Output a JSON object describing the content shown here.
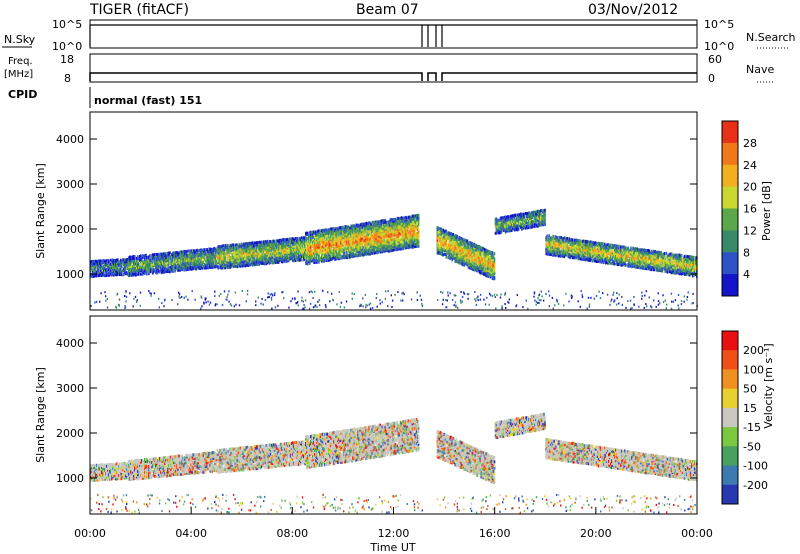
{
  "header": {
    "title": "TIGER (fitACF)",
    "beam": "Beam 07",
    "date": "03/Nov/2012"
  },
  "params": {
    "nsky_label": "N.Sky",
    "nsearch_label": "N.Search",
    "nsky_ticks": [
      "10^5",
      "10^0"
    ],
    "nsearch_ticks": [
      "10^5",
      "10^0"
    ],
    "freq_label": [
      "Freq.",
      "[MHz]"
    ],
    "freq_ticks": [
      "18",
      "8"
    ],
    "nave_label": "Nave",
    "nave_ticks": [
      "60",
      "0"
    ],
    "cpid_label": "CPID",
    "cpid_value": "normal (fast) 151"
  },
  "chart_data": [
    {
      "type": "heatmap",
      "name": "power",
      "ylabel": "Slant Range [km]",
      "yticks": [
        1000,
        2000,
        3000,
        4000
      ],
      "ylim": [
        200,
        4600
      ],
      "xlim": [
        0,
        24
      ],
      "colorbar_label": "Power [dB]",
      "colorbar_ticks": [
        "28",
        "24",
        "20",
        "16",
        "12",
        "8",
        "4"
      ],
      "colorscale": [
        "#1414c8",
        "#2e52c8",
        "#3a8a6a",
        "#5aa84a",
        "#c8d830",
        "#f0b020",
        "#f07818",
        "#e83018"
      ],
      "range_bands": [
        {
          "t": [
            0.0,
            1.5
          ],
          "center": [
            1150,
            1200
          ],
          "width": 350,
          "level": 0.35
        },
        {
          "t": [
            1.5,
            5.0
          ],
          "center": [
            1200,
            1400
          ],
          "width": 420,
          "level": 0.45
        },
        {
          "t": [
            5.0,
            8.5
          ],
          "center": [
            1400,
            1600
          ],
          "width": 500,
          "level": 0.6
        },
        {
          "t": [
            8.5,
            13.0
          ],
          "center": [
            1600,
            2000
          ],
          "width": 700,
          "level": 0.8
        },
        {
          "t": [
            13.7,
            16.0
          ],
          "center": [
            1800,
            1200
          ],
          "width": 600,
          "level": 0.75
        },
        {
          "t": [
            16.0,
            18.0
          ],
          "center": [
            2100,
            2300
          ],
          "width": 350,
          "level": 0.5
        },
        {
          "t": [
            18.0,
            24.0
          ],
          "center": [
            1700,
            1200
          ],
          "width": 450,
          "level": 0.65
        }
      ]
    },
    {
      "type": "heatmap",
      "name": "velocity",
      "ylabel": "Slant Range [km]",
      "yticks": [
        1000,
        2000,
        3000,
        4000
      ],
      "ylim": [
        200,
        4600
      ],
      "xlim": [
        0,
        24
      ],
      "xticks": [
        "00:00",
        "04:00",
        "08:00",
        "12:00",
        "16:00",
        "20:00",
        "00:00"
      ],
      "xlabel": "Time UT",
      "colorbar_label": "Velocity [m s⁻¹]",
      "colorbar_ticks": [
        "200",
        "100",
        "50",
        "15",
        "-15",
        "-50",
        "-100",
        "-200"
      ],
      "colorscale": [
        "#2838b0",
        "#3c7ab0",
        "#48a060",
        "#7cc840",
        "#c8c8c0",
        "#e8d030",
        "#f09020",
        "#f05018",
        "#e81010"
      ]
    }
  ]
}
